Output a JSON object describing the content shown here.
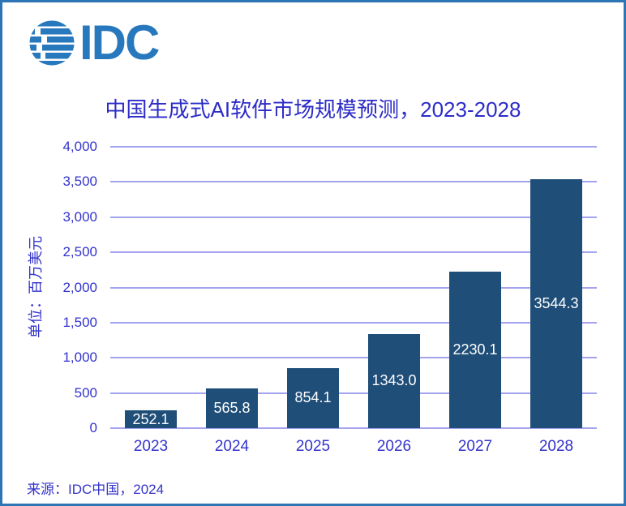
{
  "header": {
    "logo_text": "IDC",
    "logo_color": "#2878BE"
  },
  "chart_data": {
    "type": "bar",
    "title": "中国生成式AI软件市场规模预测，2023-2028",
    "ylabel": "单位：百万美元",
    "xlabel": "",
    "categories": [
      "2023",
      "2024",
      "2025",
      "2026",
      "2027",
      "2028"
    ],
    "values": [
      252.1,
      565.8,
      854.1,
      1343.0,
      2230.1,
      3544.3
    ],
    "value_labels": [
      "252.1",
      "565.8",
      "854.1",
      "1343.0",
      "2230.1",
      "3544.3"
    ],
    "ylim": [
      0,
      4000
    ],
    "ytick_step": 500,
    "ytick_labels": [
      "0",
      "500",
      "1,000",
      "1,500",
      "2,000",
      "2,500",
      "3,000",
      "3,500",
      "4,000"
    ],
    "grid": true,
    "legend_position": "none",
    "colors": {
      "bar": "#1F4E79",
      "gridline": "#A3A3EE",
      "axis_text": "#3333CC",
      "title_text": "#2C2CC8",
      "value_label": "#FFFFFF",
      "frame_border": "#2E75B6"
    }
  },
  "source": {
    "text": "来源：IDC中国，2024"
  }
}
